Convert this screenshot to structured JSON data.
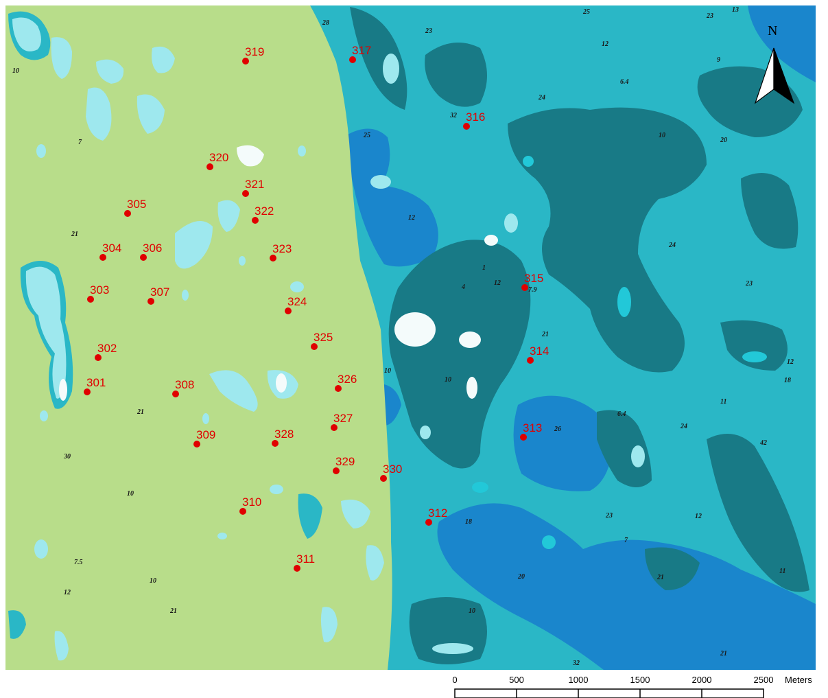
{
  "map": {
    "colors": {
      "land": "#b8dd8a",
      "deep": "#1a86cc",
      "mid": "#2ab7c6",
      "teal": "#187a86",
      "shallow": "#9ee8ee",
      "bright": "#22c8d8",
      "white": "#f4fbfb",
      "marker": "#e00000"
    },
    "stations": [
      "301",
      "302",
      "303",
      "304",
      "305",
      "306",
      "307",
      "308",
      "309",
      "310",
      "311",
      "312",
      "313",
      "314",
      "315",
      "316",
      "317",
      "319",
      "320",
      "321",
      "322",
      "323",
      "324",
      "325",
      "326",
      "327",
      "328",
      "329",
      "330"
    ],
    "depth_labels": [
      "10",
      "7",
      "21",
      "30",
      "10",
      "7.5",
      "12",
      "10",
      "21",
      "21",
      "28",
      "23",
      "25",
      "12",
      "23",
      "13",
      "12",
      "6.4",
      "24",
      "32",
      "20",
      "10",
      "9",
      "25",
      "24",
      "23",
      "4",
      "1",
      "12",
      "7.9",
      "21",
      "10",
      "10",
      "12",
      "18",
      "11",
      "6.4",
      "24",
      "42",
      "26",
      "23",
      "18",
      "12",
      "7",
      "20",
      "21",
      "10",
      "11",
      "32",
      "21"
    ],
    "north_label": "N",
    "scale": {
      "ticks": [
        "0",
        "500",
        "1000",
        "1500",
        "2000",
        "2500"
      ],
      "unit": "Meters"
    }
  }
}
